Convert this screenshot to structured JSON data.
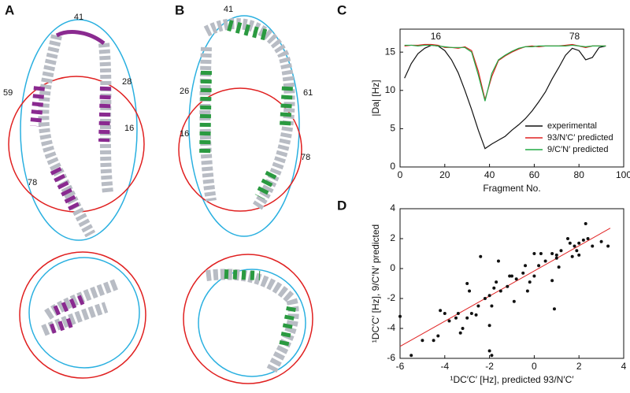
{
  "panels": {
    "labels": [
      "A",
      "B",
      "C",
      "D"
    ],
    "A": {
      "residues": [
        "41",
        "28",
        "59",
        "16",
        "78"
      ]
    },
    "B": {
      "residues": [
        "41",
        "26",
        "61",
        "16",
        "78"
      ]
    }
  },
  "chart_data": [
    {
      "type": "line",
      "ylabel": "|Da| [Hz]",
      "xlabel": "Fragment No.",
      "annotations": [
        "16",
        "78"
      ],
      "x": [
        2,
        5,
        8,
        11,
        14,
        17,
        20,
        23,
        26,
        29,
        32,
        35,
        38,
        41,
        44,
        47,
        50,
        53,
        56,
        59,
        62,
        65,
        68,
        71,
        74,
        77,
        80,
        83,
        86,
        89,
        92
      ],
      "series": [
        {
          "name": "experimental",
          "color": "#111111",
          "values": [
            11.6,
            13.5,
            14.8,
            15.5,
            15.9,
            15.8,
            15.2,
            14.0,
            12.3,
            10.0,
            7.5,
            4.8,
            2.4,
            3.0,
            3.5,
            4.0,
            4.8,
            5.5,
            6.3,
            7.3,
            8.5,
            9.8,
            11.5,
            13.0,
            14.6,
            15.5,
            15.2,
            14.0,
            14.3,
            15.6,
            15.8
          ]
        },
        {
          "name": "93/N′C′ predicted",
          "color": "#e02020",
          "values": [
            15.8,
            15.9,
            15.9,
            16.0,
            16.0,
            15.9,
            15.6,
            15.6,
            15.5,
            15.7,
            15.2,
            12.5,
            8.8,
            11.8,
            13.9,
            14.5,
            15.0,
            15.4,
            15.7,
            15.8,
            15.7,
            15.8,
            15.8,
            15.8,
            15.9,
            16.0,
            15.8,
            15.6,
            15.8,
            15.8,
            15.8
          ]
        },
        {
          "name": "9/C′N′ predicted",
          "color": "#22aa44",
          "values": [
            15.9,
            15.9,
            15.8,
            15.9,
            15.9,
            15.8,
            15.7,
            15.6,
            15.6,
            15.6,
            15.0,
            12.0,
            8.6,
            12.2,
            14.0,
            14.6,
            15.1,
            15.5,
            15.7,
            15.7,
            15.8,
            15.8,
            15.8,
            15.8,
            15.8,
            15.9,
            15.8,
            15.7,
            15.8,
            15.8,
            15.8
          ]
        }
      ],
      "xlim": [
        0,
        100
      ],
      "xticks": [
        0,
        20,
        40,
        60,
        80,
        100
      ],
      "ylim": [
        0,
        18
      ],
      "yticks": [
        0,
        5,
        10,
        15
      ],
      "legend": "lower-right"
    },
    {
      "type": "scatter",
      "xlabel": "¹DC′C′ [Hz], predicted 93/N′C′",
      "ylabel": "¹DC′C′ [Hz], 9/C′N′ predicted",
      "color": "#111111",
      "x": [
        -6,
        -5.5,
        -5,
        -4.5,
        -4.3,
        -4.2,
        -4,
        -3.8,
        -3.5,
        -3.4,
        -3.3,
        -3.2,
        -3,
        -3,
        -2.9,
        -2.8,
        -2.6,
        -2.5,
        -2.4,
        -2.2,
        -2,
        -2,
        -1.9,
        -1.8,
        -1.7,
        -1.6,
        -1.5,
        -1.2,
        -1,
        -0.9,
        -0.8,
        -0.5,
        -0.4,
        -0.3,
        -0.2,
        0,
        0,
        0.2,
        0.3,
        0.5,
        0.8,
        0.9,
        1,
        1,
        1.2,
        1.5,
        1.6,
        1.7,
        1.8,
        1.9,
        2,
        2,
        2.2,
        2.3,
        2.4,
        2.6,
        3,
        3.3,
        -1.9,
        -2,
        0.8,
        1.1,
        -1.1
      ],
      "values": [
        -3.2,
        -5.8,
        -4.8,
        -4.8,
        -4.5,
        -2.8,
        -3,
        -3.5,
        -3.3,
        -3,
        -4.3,
        -4,
        -1,
        -3.3,
        -1.5,
        -3,
        -3.1,
        -2.5,
        0.8,
        -2,
        -3.8,
        -1.8,
        -2.5,
        -1.3,
        -0.9,
        0.5,
        -1.5,
        -1.2,
        -0.5,
        -2.2,
        -0.7,
        -0.3,
        0.2,
        -1.5,
        -0.9,
        1,
        -0.5,
        0.2,
        1,
        0.5,
        -0.8,
        -2.7,
        0.7,
        0.9,
        1.2,
        2,
        1.7,
        0.8,
        1.5,
        1.2,
        0.9,
        1.7,
        1.9,
        3,
        2,
        1.5,
        1.8,
        1.5,
        -5.8,
        -5.5,
        1,
        0.1,
        -0.5
      ],
      "fit_line": {
        "color": "#e02020",
        "x": [
          -6,
          3.4
        ],
        "values": [
          -5.2,
          2.7
        ]
      },
      "xlim": [
        -6,
        4
      ],
      "xticks": [
        -6,
        -4,
        -2,
        0,
        2,
        4
      ],
      "ylim": [
        -6,
        4
      ],
      "yticks": [
        -6,
        -4,
        -2,
        0,
        2,
        4
      ]
    }
  ]
}
